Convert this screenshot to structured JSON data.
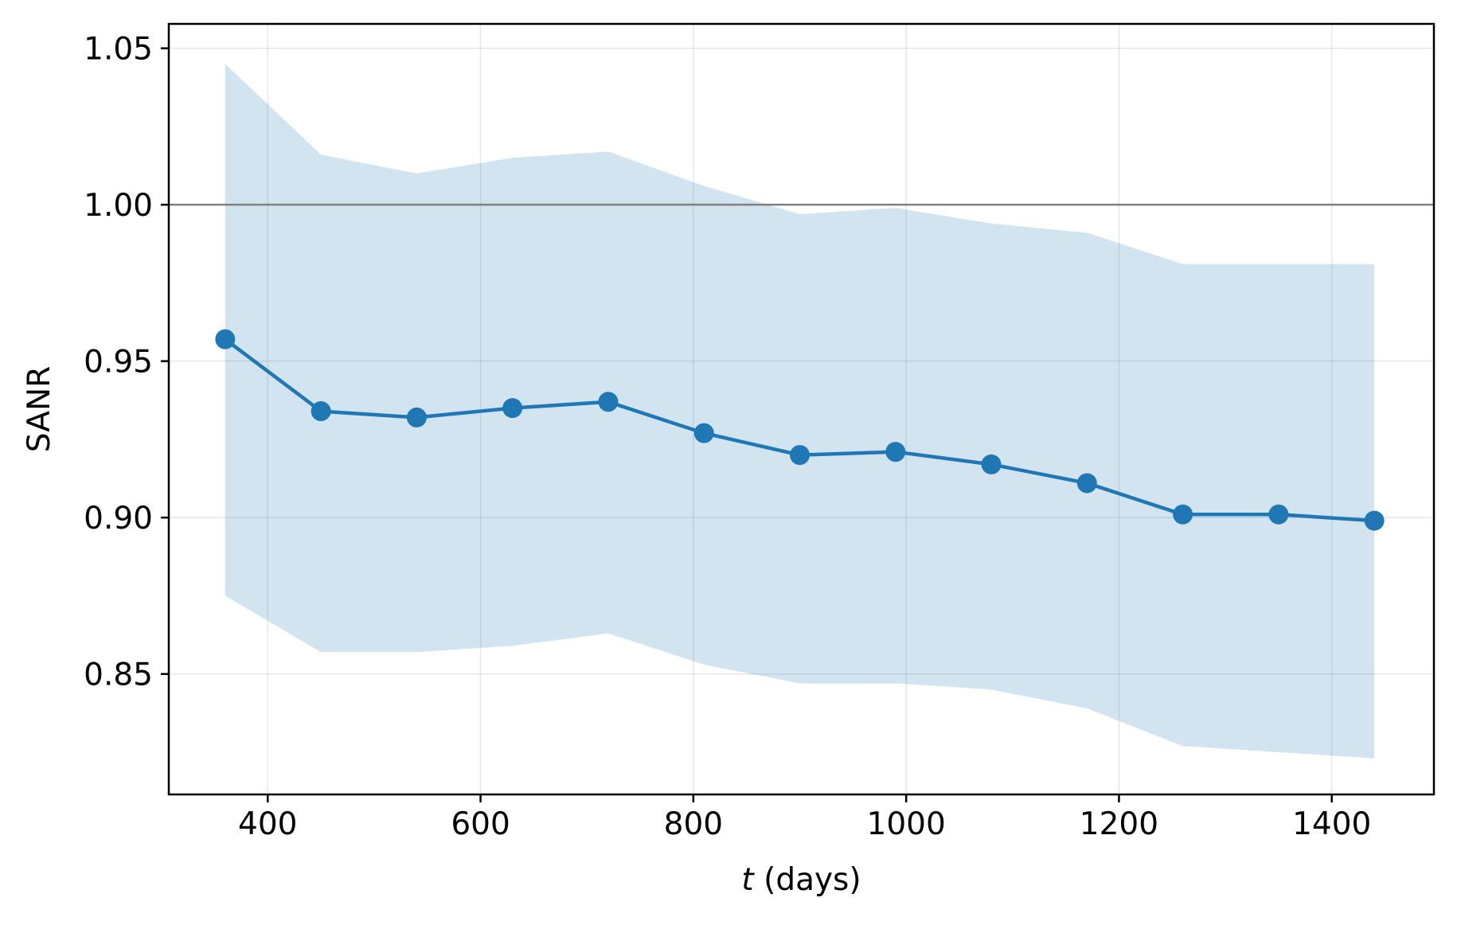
{
  "chart_data": {
    "type": "line",
    "title": "",
    "xlabel_var": "t",
    "xlabel_unit": " (days)",
    "ylabel": "SANR",
    "xlim": [
      307,
      1496
    ],
    "ylim": [
      0.8115,
      1.0578
    ],
    "xticks": [
      400,
      600,
      800,
      1000,
      1200,
      1400
    ],
    "xtick_labels": [
      "400",
      "600",
      "800",
      "1000",
      "1200",
      "1400"
    ],
    "yticks": [
      0.85,
      0.9,
      0.95,
      1.0,
      1.05
    ],
    "ytick_labels": [
      "0.85",
      "0.90",
      "0.95",
      "1.00",
      "1.05"
    ],
    "grid": true,
    "reference_line": 1.0,
    "x": [
      360,
      450,
      540,
      630,
      720,
      810,
      900,
      990,
      1080,
      1170,
      1260,
      1350,
      1440
    ],
    "series": [
      {
        "values": [
          0.957,
          0.934,
          0.932,
          0.935,
          0.937,
          0.927,
          0.92,
          0.921,
          0.917,
          0.911,
          0.901,
          0.901,
          0.899
        ]
      }
    ],
    "band": {
      "upper": [
        1.045,
        1.016,
        1.01,
        1.015,
        1.017,
        1.006,
        0.997,
        0.999,
        0.994,
        0.991,
        0.981,
        0.981,
        0.981
      ],
      "lower": [
        0.875,
        0.857,
        0.857,
        0.859,
        0.863,
        0.853,
        0.847,
        0.847,
        0.845,
        0.839,
        0.827,
        0.825,
        0.823
      ]
    },
    "colors": {
      "line": "#1f77b4",
      "band": "#1f77b4",
      "reference": "#808080",
      "grid": "#b0b0b0",
      "axes": "#000000"
    }
  }
}
